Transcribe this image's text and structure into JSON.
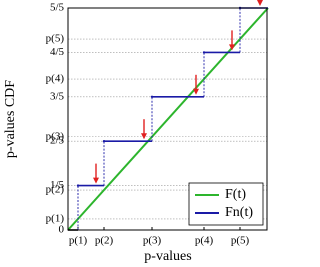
{
  "chart_data": {
    "type": "step",
    "xlabel": "p-values",
    "ylabel": "p-values CDF",
    "xlim": [
      0,
      1
    ],
    "ylim": [
      0,
      1
    ],
    "xticks": [
      {
        "value": 0.05,
        "label": "p(1)"
      },
      {
        "value": 0.18,
        "label": "p(2)"
      },
      {
        "value": 0.42,
        "label": "p(3)"
      },
      {
        "value": 0.68,
        "label": "p(4)"
      },
      {
        "value": 0.86,
        "label": "p(5)"
      }
    ],
    "yticks": [
      0,
      {
        "value": 0.05,
        "label": "p(1)"
      },
      {
        "value": 0.2,
        "label": "1/5"
      },
      {
        "value": 0.18,
        "label": "p(2)"
      },
      {
        "value": 0.4,
        "label": "2/5"
      },
      {
        "value": 0.42,
        "label": "p(3)"
      },
      {
        "value": 0.6,
        "label": "3/5"
      },
      {
        "value": 0.68,
        "label": "p(4)"
      },
      {
        "value": 0.8,
        "label": "4/5"
      },
      {
        "value": 0.86,
        "label": "p(5)"
      },
      {
        "value": 1,
        "label": "5/5"
      }
    ],
    "grid": true,
    "legend": "lower right",
    "series": [
      {
        "name": "F(t)",
        "color": "#2db52d",
        "kind": "line",
        "x": [
          0,
          1
        ],
        "values": [
          0,
          1
        ]
      },
      {
        "name": "Fn(t)",
        "color": "#1a1aa6",
        "kind": "step",
        "x": [
          0,
          0.05,
          0.18,
          0.42,
          0.68,
          0.86
        ],
        "values": [
          0,
          0.2,
          0.4,
          0.6,
          0.8,
          1
        ]
      }
    ],
    "arrow_color": "#e02020"
  }
}
